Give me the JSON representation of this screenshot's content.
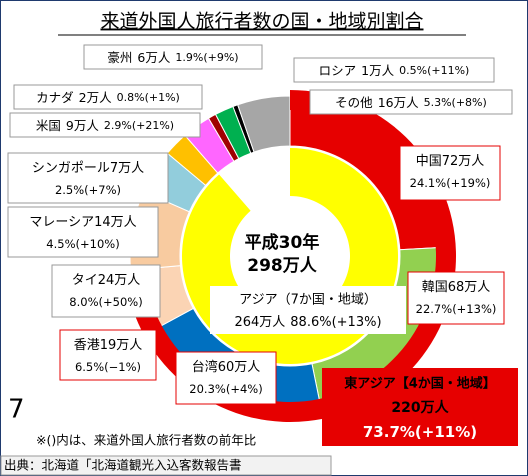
{
  "chart_data": {
    "type": "pie",
    "title": "来道外国人旅行者数の国・地域別割合",
    "center_text": [
      "平成30年",
      "298万人"
    ],
    "categories": [
      "中国",
      "韓国",
      "台湾",
      "香港",
      "タイ",
      "マレーシア",
      "シンガポール",
      "米国",
      "カナダ",
      "豪州",
      "ロシア",
      "その他"
    ],
    "counts": [
      "72万人",
      "68万人",
      "60万人",
      "19万人",
      "24万人",
      "14万人",
      "7万人",
      "9万人",
      "2万人",
      "6万人",
      "1万人",
      "16万人"
    ],
    "values": [
      24.1,
      22.7,
      20.3,
      6.5,
      8.0,
      4.5,
      2.5,
      2.9,
      0.8,
      1.9,
      0.5,
      5.3
    ],
    "value_labels": [
      "24.1%",
      "22.7%",
      "20.3%",
      "6.5%",
      "8.0%",
      "4.5%",
      "2.5%",
      "2.9%",
      "0.8%",
      "1.9%",
      "0.5%",
      "5.3%"
    ],
    "changes": [
      "(+19%)",
      "(+13%)",
      "(+4%)",
      "(−1%)",
      "(+50%)",
      "(+10%)",
      "(+7%)",
      "(+21%)",
      "(+1%)",
      "(+9%)",
      "(+11%)",
      "(+8%)"
    ],
    "colors": [
      "#e60000",
      "#92d050",
      "#0070c0",
      "#fbd4b4",
      "#f8cba0",
      "#92cddc",
      "#ffc000",
      "#ff66ff",
      "#a00000",
      "#00b050",
      "#000000",
      "#a6a6a6"
    ],
    "groups": [
      {
        "name": "東アジア【4か国・地域】",
        "count": "220万人",
        "value": 73.7,
        "value_label": "73.7%",
        "change": "(+11%)",
        "color": "#e60000"
      },
      {
        "name": "アジア（7か国・地域）",
        "count": "264万人",
        "value": 88.6,
        "value_label": "88.6%",
        "change": "(+13%)",
        "color": "#ffff00"
      }
    ],
    "notes": [
      "7",
      "※()内は、来道外国人旅行者数の前年比",
      "出典：北海道「北海道観光入込客数報告書"
    ]
  }
}
